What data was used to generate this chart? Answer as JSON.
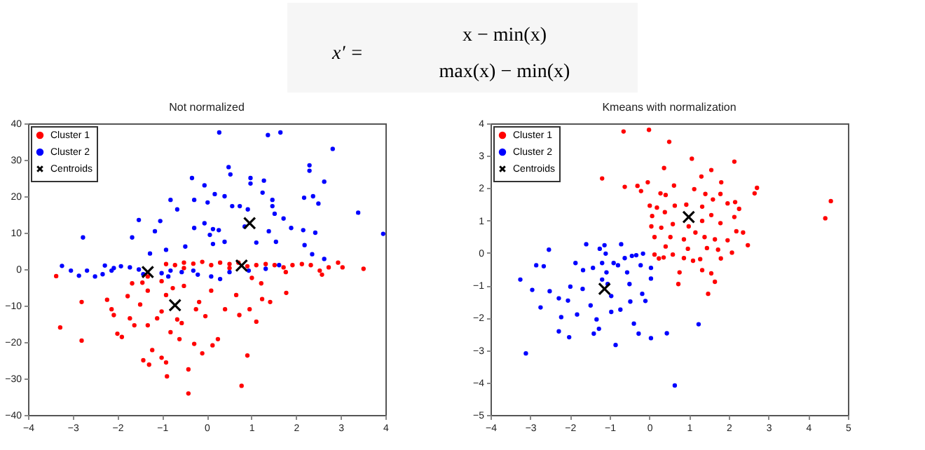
{
  "chart_data": [
    {
      "type": "other",
      "annotations": [
        "x′ =",
        "x − min(x)",
        "max(x) − min(x)"
      ]
    },
    {
      "type": "scatter",
      "title": "Not normalized",
      "xlim": [
        -4,
        4
      ],
      "ylim": [
        -40,
        40
      ],
      "xticks": [
        -4,
        -3,
        -2,
        -1,
        0,
        1,
        2,
        3,
        4
      ],
      "yticks": [
        -40,
        -30,
        -20,
        -10,
        0,
        10,
        20,
        30,
        40
      ],
      "grid": false,
      "legend": "top left",
      "series": [
        {
          "name": "Cluster 1",
          "color": "#ff0000",
          "marker": "circle",
          "x": [
            -3.37,
            -3.28,
            -2.8,
            -2.8,
            -2.23,
            -2.13,
            -2.0,
            -1.9,
            -2.08,
            -1.77,
            -1.72,
            -1.62,
            -1.67,
            -1.49,
            -1.42,
            -1.32,
            -1.29,
            -1.22,
            -1.11,
            -1.32,
            -1.01,
            -0.91,
            -1.01,
            -0.91,
            -0.89,
            -0.81,
            -0.66,
            -0.61,
            -0.56,
            -0.51,
            -0.41,
            -0.41,
            -0.28,
            -0.24,
            -0.03,
            -0.1,
            0.1,
            0.13,
            0.25,
            0.41,
            0.66,
            0.73,
            0.91,
            0.78,
            0.96,
            1.11,
            1.24,
            1.42,
            1.78,
            1.22,
            -1.32,
            -1.44,
            -1.01,
            -0.76,
            -0.17,
            -0.91,
            -0.71,
            -0.51,
            -0.3,
            -0.1,
            0.1,
            0.3,
            0.51,
            0.71,
            0.91,
            1.11,
            1.32,
            1.52,
            1.72,
            1.92,
            2.13,
            2.33,
            2.53,
            2.58,
            2.73,
            2.94,
            3.04,
            3.51,
            1.01,
            1.77,
            0.51,
            -0.51
          ],
          "values": [
            -1.9,
            -16,
            -9,
            -19.6,
            -8.4,
            -11,
            -17.7,
            -18.6,
            -12.6,
            -7.4,
            -13.5,
            -15.4,
            -3.9,
            -9.7,
            -25,
            -15.4,
            -26.2,
            -22.2,
            -13.5,
            -5.9,
            -11.6,
            -7.1,
            -24.3,
            -25.6,
            -29.4,
            -17.3,
            -13.8,
            -19.2,
            -14.8,
            -4.6,
            -27.5,
            -34.1,
            -20.5,
            -11,
            -12.9,
            -23.1,
            -5.9,
            -20.9,
            -19.2,
            -11,
            -7.1,
            -12.6,
            -23.7,
            -32,
            -11,
            -14.4,
            -8.2,
            -9,
            -6.5,
            -3.9,
            -2,
            -3.7,
            -3.3,
            -5.2,
            -9,
            1.4,
            1.1,
            1.8,
            1.5,
            2,
            1.1,
            1.8,
            1.4,
            1.8,
            0.8,
            1.1,
            1.4,
            1.1,
            0.5,
            1.1,
            1.4,
            1.1,
            -0.4,
            -1.5,
            0.5,
            1.8,
            0.5,
            0.1,
            -2.4,
            -0.8,
            0.3,
            0.3
          ]
        },
        {
          "name": "Cluster 2",
          "color": "#0000ff",
          "marker": "circle",
          "x": [
            0.28,
            1.37,
            1.65,
            2.82,
            2.3,
            2.3,
            0.49,
            0.53,
            -0.33,
            0.98,
            0.98,
            -0.05,
            1.28,
            1.25,
            2.63,
            2.38,
            2.18,
            2.5,
            0.18,
            0.4,
            -0.28,
            0.02,
            1.47,
            -0.81,
            0.57,
            0.74,
            1.47,
            -0.66,
            0.92,
            1.52,
            3.39,
            1.72,
            -1.52,
            -1.04,
            -0.05,
            0.85,
            0.27,
            2.16,
            1.89,
            -0.28,
            -1.16,
            1.39,
            0.14,
            2.43,
            3.95,
            0.07,
            -1.67,
            -2.77,
            0.4,
            1.11,
            1.55,
            2.19,
            -0.48,
            0.14,
            -0.91,
            -1.27,
            2.36,
            2.63,
            -3.24,
            -3.04,
            -2.68,
            -2.28,
            -2.08,
            -1.92,
            -1.72,
            -1.52,
            -2.33,
            -2.5,
            -2.86,
            -1.01,
            -0.81,
            -0.56,
            -0.3,
            -0.2,
            0.1,
            0.3,
            0.51,
            0.94,
            1.32,
            1.62,
            -0.86,
            -1.42,
            -2.13
          ],
          "values": [
            37.5,
            36.8,
            37.5,
            33,
            28.5,
            27,
            28,
            26,
            25,
            25,
            23.5,
            23,
            24.3,
            21,
            24,
            20,
            19.6,
            18,
            20.6,
            20,
            19,
            18.3,
            19,
            19,
            17.3,
            17.3,
            17.3,
            16.4,
            16.4,
            15.2,
            15.5,
            13.9,
            13.5,
            13.2,
            12.6,
            11.7,
            10.7,
            10.7,
            11.3,
            11.3,
            10.4,
            10.4,
            11,
            10,
            9.7,
            9.4,
            8.7,
            8.7,
            7.5,
            7.3,
            7.5,
            6.6,
            6.2,
            6.9,
            5.3,
            4.3,
            4.1,
            2.8,
            0.9,
            -0.4,
            -0.4,
            1,
            0.3,
            0.8,
            0.5,
            -0.1,
            -1.4,
            -2,
            -1.8,
            -1.1,
            -0.4,
            -0.8,
            -0.4,
            -1.5,
            -2,
            -2.7,
            -0.8,
            -0.4,
            0.1,
            1.1,
            -2,
            -1.4,
            -0.4
          ]
        },
        {
          "name": "Centroids",
          "color": "#000000",
          "marker": "cross",
          "x": [
            0.96,
            -1.32,
            0.78,
            -0.71
          ],
          "values": [
            12.6,
            -0.8,
            1,
            -9.9
          ]
        }
      ]
    },
    {
      "type": "scatter",
      "title": "Kmeans with normalization",
      "xlim": [
        -4,
        5
      ],
      "ylim": [
        -5,
        4
      ],
      "xticks": [
        -4,
        -3,
        -2,
        -1,
        0,
        1,
        2,
        3,
        4,
        5
      ],
      "yticks": [
        -5,
        -4,
        -3,
        -2,
        -1,
        0,
        1,
        2,
        3,
        4
      ],
      "grid": false,
      "legend": "top left",
      "series": [
        {
          "name": "Cluster 1",
          "color": "#ff0000",
          "marker": "circle",
          "x": [
            -0.65,
            -0.01,
            0.5,
            1.07,
            2.14,
            0.37,
            1.31,
            1.56,
            -1.19,
            -0.62,
            -0.3,
            -0.04,
            1.81,
            1.13,
            2.71,
            2.65,
            -0.21,
            0.28,
            0.41,
            0.62,
            1.41,
            1.6,
            1.79,
            1.97,
            2.16,
            0.01,
            0.19,
            0.64,
            0.93,
            1.33,
            2.26,
            0.07,
            0.39,
            1.33,
            1.56,
            2.14,
            1.79,
            4.43,
            4.57,
            0.05,
            0.3,
            0.59,
            0.99,
            1.16,
            2.19,
            2.36,
            0.13,
            0.53,
            0.87,
            1.39,
            1.65,
            1.97,
            2.48,
            0.41,
            0.97,
            1.45,
            1.73,
            2.08,
            0.13,
            0.36,
            0.59,
            0.87,
            1.1,
            1.28,
            1.8,
            0.24,
            0.76,
            1.33,
            1.56,
            1.65,
            0.73,
            1.48
          ],
          "values": [
            3.75,
            3.8,
            3.43,
            2.91,
            2.82,
            2.62,
            2.36,
            2.56,
            2.3,
            2.04,
            2.07,
            2.18,
            2.18,
            1.97,
            2.01,
            1.84,
            1.91,
            1.84,
            1.79,
            2.08,
            1.82,
            1.65,
            1.82,
            1.53,
            1.57,
            1.46,
            1.4,
            1.46,
            1.49,
            1.43,
            1.36,
            1.14,
            1.26,
            0.99,
            1.17,
            1.11,
            0.92,
            1.07,
            1.6,
            0.82,
            0.78,
            0.89,
            0.82,
            0.63,
            0.67,
            0.63,
            0.49,
            0.49,
            0.42,
            0.49,
            0.42,
            0.39,
            0.24,
            0.2,
            0.13,
            0.15,
            0.1,
            0.01,
            -0.05,
            -0.14,
            -0.05,
            -0.16,
            -0.24,
            -0.19,
            -0.17,
            -0.17,
            -0.6,
            -0.53,
            -0.63,
            -0.89,
            -0.96,
            -1.26
          ]
        },
        {
          "name": "Cluster 2",
          "color": "#0000ff",
          "marker": "circle",
          "x": [
            -3.25,
            -3.11,
            -2.95,
            -2.85,
            -2.66,
            -2.53,
            -2.74,
            -2.51,
            -2.28,
            -2.22,
            -2.28,
            -2.05,
            -1.99,
            -2.02,
            -1.86,
            -1.82,
            -1.67,
            -1.59,
            -1.68,
            -1.42,
            -1.4,
            -1.33,
            -1.27,
            -1.25,
            -1.19,
            -1.13,
            -1.1,
            -1.08,
            -1.05,
            -0.96,
            -0.9,
            -0.79,
            -0.71,
            -0.62,
            -0.56,
            -0.5,
            -0.48,
            -0.85,
            -0.96,
            -0.73,
            -0.39,
            -0.27,
            -0.44,
            -0.33,
            -0.16,
            -0.22,
            -0.18,
            0.04,
            0.04,
            0.04,
            0.44,
            0.64,
            1.24,
            -0.1,
            -1.48,
            -1.19
          ],
          "values": [
            -0.82,
            -3.1,
            -1.14,
            -0.38,
            -0.41,
            0.1,
            -1.68,
            -1.18,
            -1.4,
            -1.98,
            -2.42,
            -1.47,
            -1.04,
            -2.6,
            -0.31,
            -1.9,
            -0.53,
            0.27,
            -1.11,
            -0.46,
            -2.49,
            -2.05,
            -2.34,
            0.13,
            -0.31,
            0.24,
            -0.02,
            -0.6,
            -0.96,
            -1.33,
            -0.31,
            -0.38,
            0.27,
            -0.16,
            -0.6,
            -0.96,
            -1.5,
            -2.84,
            -1.82,
            -1.75,
            -2.18,
            -2.49,
            -0.09,
            -0.07,
            -0.02,
            -0.38,
            -1.26,
            -0.46,
            -0.79,
            -2.63,
            -2.48,
            -4.09,
            -2.2,
            -1.48,
            -1.62,
            -0.82
          ]
        },
        {
          "name": "Centroids",
          "color": "#000000",
          "marker": "cross",
          "x": [
            0.99,
            -1.13
          ],
          "values": [
            1.11,
            -1.11
          ]
        }
      ]
    }
  ]
}
